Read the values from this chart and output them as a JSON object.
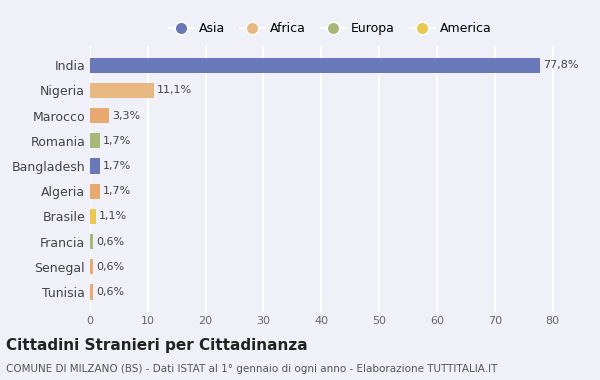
{
  "countries": [
    "India",
    "Nigeria",
    "Marocco",
    "Romania",
    "Bangladesh",
    "Algeria",
    "Brasile",
    "Francia",
    "Senegal",
    "Tunisia"
  ],
  "values": [
    77.8,
    11.1,
    3.3,
    1.7,
    1.7,
    1.7,
    1.1,
    0.6,
    0.6,
    0.6
  ],
  "labels": [
    "77,8%",
    "11,1%",
    "3,3%",
    "1,7%",
    "1,7%",
    "1,7%",
    "1,1%",
    "0,6%",
    "0,6%",
    "0,6%"
  ],
  "colors": [
    "#6878b8",
    "#e8b882",
    "#e8a870",
    "#a8b878",
    "#6878b8",
    "#e8a870",
    "#e8c850",
    "#a8b878",
    "#e8a870",
    "#e8a870"
  ],
  "legend_labels": [
    "Asia",
    "Africa",
    "Europa",
    "America"
  ],
  "legend_colors": [
    "#6878b8",
    "#e8b882",
    "#a8b878",
    "#e8c850"
  ],
  "title": "Cittadini Stranieri per Cittadinanza",
  "subtitle": "COMUNE DI MILZANO (BS) - Dati ISTAT al 1° gennaio di ogni anno - Elaborazione TUTTITALIA.IT",
  "xlim": [
    0,
    83
  ],
  "background_color": "#f0f0f8",
  "grid_color": "#ffffff"
}
